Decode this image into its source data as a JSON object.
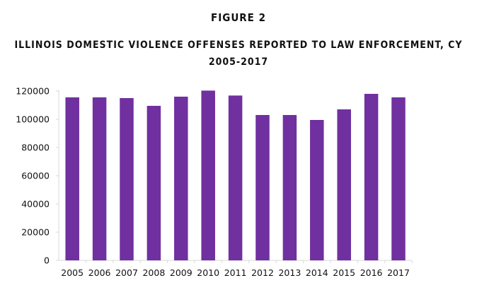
{
  "figure_label": "FIGURE 2",
  "chart_data": {
    "type": "bar",
    "title": "ILLINOIS DOMESTIC VIOLENCE OFFENSES REPORTED TO LAW ENFORCEMENT, CY 2005-2017",
    "xlabel": "",
    "ylabel": "",
    "categories": [
      "2005",
      "2006",
      "2007",
      "2008",
      "2009",
      "2010",
      "2011",
      "2012",
      "2013",
      "2014",
      "2015",
      "2016",
      "2017"
    ],
    "values": [
      115500,
      115500,
      115000,
      109500,
      116000,
      120300,
      116800,
      103000,
      103000,
      99500,
      107000,
      118000,
      115500
    ],
    "ylim": [
      0,
      120000
    ],
    "yticks": [
      0,
      20000,
      40000,
      60000,
      80000,
      100000,
      120000
    ],
    "grid": false,
    "legend": "none",
    "bar_color": "#7030a0"
  }
}
